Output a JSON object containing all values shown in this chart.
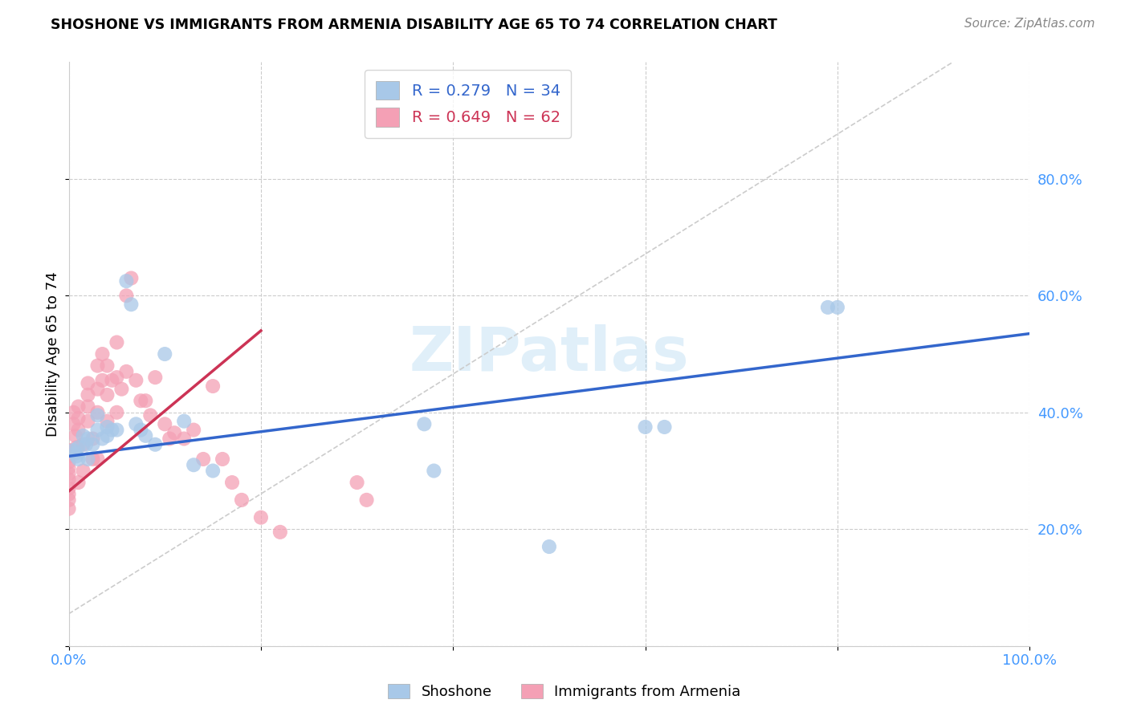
{
  "title": "SHOSHONE VS IMMIGRANTS FROM ARMENIA DISABILITY AGE 65 TO 74 CORRELATION CHART",
  "source": "Source: ZipAtlas.com",
  "ylabel": "Disability Age 65 to 74",
  "xlim": [
    0,
    1.0
  ],
  "ylim": [
    0,
    1.0
  ],
  "watermark": "ZIPatlas",
  "shoshone_R": 0.279,
  "shoshone_N": 34,
  "armenia_R": 0.649,
  "armenia_N": 62,
  "shoshone_color": "#A8C8E8",
  "armenia_color": "#F4A0B5",
  "shoshone_line_color": "#3366CC",
  "armenia_line_color": "#CC3355",
  "shoshone_x": [
    0.005,
    0.007,
    0.008,
    0.01,
    0.01,
    0.015,
    0.018,
    0.02,
    0.02,
    0.025,
    0.03,
    0.03,
    0.035,
    0.04,
    0.04,
    0.045,
    0.05,
    0.06,
    0.065,
    0.07,
    0.075,
    0.08,
    0.09,
    0.1,
    0.12,
    0.13,
    0.15,
    0.37,
    0.38,
    0.5,
    0.6,
    0.62,
    0.79,
    0.8
  ],
  "shoshone_y": [
    0.335,
    0.33,
    0.325,
    0.34,
    0.32,
    0.36,
    0.345,
    0.355,
    0.32,
    0.345,
    0.395,
    0.37,
    0.355,
    0.375,
    0.36,
    0.37,
    0.37,
    0.625,
    0.585,
    0.38,
    0.37,
    0.36,
    0.345,
    0.5,
    0.385,
    0.31,
    0.3,
    0.38,
    0.3,
    0.17,
    0.375,
    0.375,
    0.58,
    0.58
  ],
  "armenia_x": [
    0.0,
    0.0,
    0.0,
    0.0,
    0.0,
    0.0,
    0.0,
    0.0,
    0.0,
    0.0,
    0.005,
    0.005,
    0.007,
    0.008,
    0.01,
    0.01,
    0.01,
    0.01,
    0.015,
    0.015,
    0.02,
    0.02,
    0.02,
    0.02,
    0.025,
    0.025,
    0.03,
    0.03,
    0.03,
    0.03,
    0.035,
    0.035,
    0.04,
    0.04,
    0.04,
    0.045,
    0.05,
    0.05,
    0.05,
    0.055,
    0.06,
    0.06,
    0.065,
    0.07,
    0.075,
    0.08,
    0.085,
    0.09,
    0.1,
    0.105,
    0.11,
    0.12,
    0.13,
    0.14,
    0.15,
    0.16,
    0.17,
    0.18,
    0.2,
    0.22,
    0.3,
    0.31
  ],
  "armenia_y": [
    0.335,
    0.325,
    0.315,
    0.305,
    0.295,
    0.285,
    0.27,
    0.26,
    0.25,
    0.235,
    0.4,
    0.38,
    0.36,
    0.34,
    0.41,
    0.39,
    0.37,
    0.28,
    0.345,
    0.3,
    0.45,
    0.43,
    0.41,
    0.385,
    0.355,
    0.32,
    0.48,
    0.44,
    0.4,
    0.32,
    0.5,
    0.455,
    0.48,
    0.43,
    0.385,
    0.455,
    0.52,
    0.46,
    0.4,
    0.44,
    0.6,
    0.47,
    0.63,
    0.455,
    0.42,
    0.42,
    0.395,
    0.46,
    0.38,
    0.355,
    0.365,
    0.355,
    0.37,
    0.32,
    0.445,
    0.32,
    0.28,
    0.25,
    0.22,
    0.195,
    0.28,
    0.25
  ],
  "shoshone_line_x0": 0.0,
  "shoshone_line_y0": 0.325,
  "shoshone_line_x1": 1.0,
  "shoshone_line_y1": 0.535,
  "armenia_line_x0": 0.0,
  "armenia_line_y0": 0.265,
  "armenia_line_x1": 0.2,
  "armenia_line_y1": 0.54,
  "ref_line_x0": 0.0,
  "ref_line_y0": 0.055,
  "ref_line_x1": 0.92,
  "ref_line_y1": 1.0
}
